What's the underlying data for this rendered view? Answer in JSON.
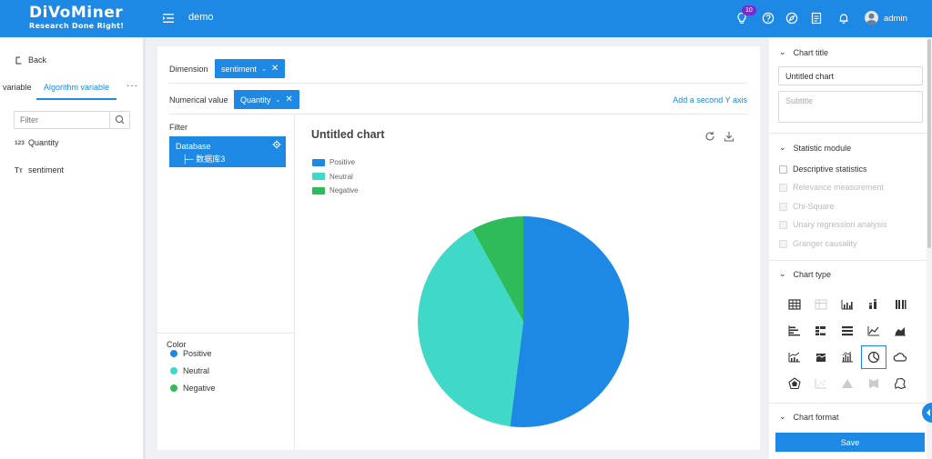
{
  "header": {
    "logo_main": "DiVoMiner",
    "logo_sub": "Research Done Right!",
    "project": "demo",
    "notification_count": "10",
    "user": "admin",
    "bg_color": "#1e88e5"
  },
  "sidebar": {
    "back_label": "Back",
    "tabs": [
      {
        "label": "variable"
      },
      {
        "label": "Algorithm variable"
      }
    ],
    "more_label": "···",
    "filter_placeholder": "Filter",
    "variables": [
      {
        "type": "123",
        "label": "Quantity"
      },
      {
        "type": "Tт",
        "label": "sentiment"
      }
    ]
  },
  "config": {
    "dimension_label": "Dimension",
    "dimension_value": "sentiment",
    "numeric_label": "Numerical value",
    "numeric_value": "Quantity",
    "add_y_axis": "Add a second Y axis"
  },
  "filter": {
    "title": "Filter",
    "database": "Database",
    "child": "├─ 数据库3"
  },
  "color": {
    "title": "Color",
    "items": [
      {
        "label": "Positive",
        "color": "#1e88e5"
      },
      {
        "label": "Neutral",
        "color": "#40d9c8"
      },
      {
        "label": "Negative",
        "color": "#2ebc5a"
      }
    ]
  },
  "chart_data": {
    "type": "pie",
    "title": "Untitled chart",
    "labels": [
      "Positive",
      "Neutral",
      "Negative"
    ],
    "values": [
      52,
      40,
      8
    ],
    "colors": [
      "#1e88e5",
      "#40d9c8",
      "#2ebc5a"
    ],
    "legend_position": "top-left"
  },
  "right_panel": {
    "chart_title_section": "Chart title",
    "title_value": "Untitled chart",
    "subtitle_placeholder": "Subtitle",
    "statistic_section": "Statistic module",
    "statistics": [
      {
        "label": "Descriptive statistics",
        "disabled": false
      },
      {
        "label": "Relevance measurement",
        "disabled": true
      },
      {
        "label": "Chi-Square",
        "disabled": true
      },
      {
        "label": "Unary regression analysis",
        "disabled": true
      },
      {
        "label": "Granger causality",
        "disabled": true
      }
    ],
    "chart_type_section": "Chart type",
    "chart_types": [
      "table-icon",
      "table-light-icon",
      "bar-chart-icon",
      "stacked-bar-icon",
      "grouped-bar-icon",
      "horizontal-bar-icon",
      "horizontal-grouped-bar-icon",
      "horizontal-stacked-bar-icon",
      "line-chart-icon",
      "area-chart-icon",
      "bar-line-combo-icon",
      "stacked-area-icon",
      "waterfall-icon",
      "pie-chart-icon",
      "word-cloud-icon",
      "radar-chart-icon",
      "scatter-icon",
      "triangle-icon",
      "map-icon",
      "geo-map-icon"
    ],
    "selected_chart_type": "pie-chart-icon",
    "chart_format_section": "Chart format",
    "save_label": "Save"
  }
}
